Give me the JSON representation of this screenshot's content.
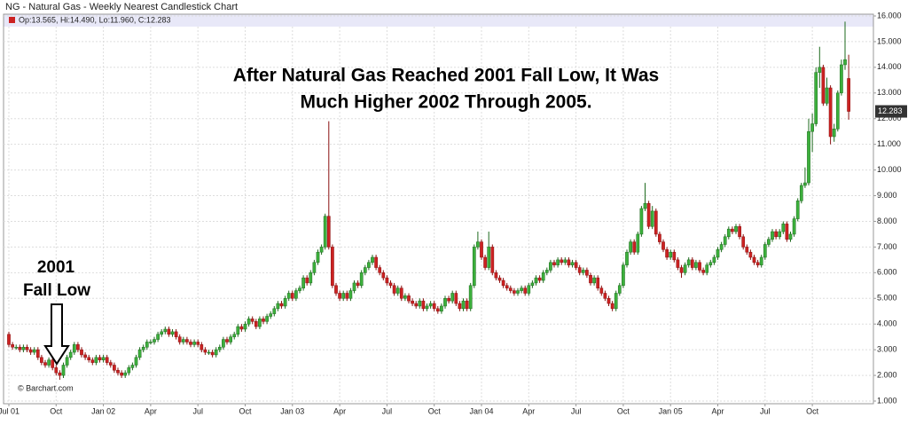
{
  "chart_data": {
    "type": "candlestick",
    "title": "NG - Natural Gas - Weekly Nearest Candlestick Chart",
    "legend_label": "Op:13.565, Hi:14.490, Lo:11.960, C:12.283",
    "annotation_lines": [
      "After Natural Gas Reached 2001 Fall Low, It Was",
      "Much Higher 2002 Through 2005."
    ],
    "callout_lines": [
      "2001",
      "Fall Low"
    ],
    "credit": "© Barchart.com",
    "up_color": "#3cb03c",
    "down_color": "#cc2222",
    "grid": true,
    "ylim": [
      1,
      16
    ],
    "yticks": [
      {
        "value": 1,
        "label": "1.000"
      },
      {
        "value": 2,
        "label": "2.000"
      },
      {
        "value": 3,
        "label": "3.000"
      },
      {
        "value": 4,
        "label": "4.000"
      },
      {
        "value": 5,
        "label": "5.000"
      },
      {
        "value": 6,
        "label": "6.000"
      },
      {
        "value": 7,
        "label": "7.000"
      },
      {
        "value": 8,
        "label": "8.000"
      },
      {
        "value": 9,
        "label": "9.000"
      },
      {
        "value": 10,
        "label": "10.000"
      },
      {
        "value": 11,
        "label": "11.000"
      },
      {
        "value": 12,
        "label": "12.000"
      },
      {
        "value": 13,
        "label": "13.000"
      },
      {
        "value": 14,
        "label": "14.000"
      },
      {
        "value": 15,
        "label": "15.000"
      },
      {
        "value": 16,
        "label": "16.000"
      }
    ],
    "categories": [
      "Jul 01",
      null,
      null,
      null,
      null,
      null,
      null,
      null,
      null,
      null,
      null,
      null,
      null,
      "Oct",
      null,
      null,
      null,
      null,
      null,
      null,
      null,
      null,
      null,
      null,
      null,
      null,
      "Jan 02",
      null,
      null,
      null,
      null,
      null,
      null,
      null,
      null,
      null,
      null,
      null,
      null,
      "Apr",
      null,
      null,
      null,
      null,
      null,
      null,
      null,
      null,
      null,
      null,
      null,
      null,
      "Jul",
      null,
      null,
      null,
      null,
      null,
      null,
      null,
      null,
      null,
      null,
      null,
      null,
      "Oct",
      null,
      null,
      null,
      null,
      null,
      null,
      null,
      null,
      null,
      null,
      null,
      null,
      "Jan 03",
      null,
      null,
      null,
      null,
      null,
      null,
      null,
      null,
      null,
      null,
      null,
      null,
      "Apr",
      null,
      null,
      null,
      null,
      null,
      null,
      null,
      null,
      null,
      null,
      null,
      null,
      "Jul",
      null,
      null,
      null,
      null,
      null,
      null,
      null,
      null,
      null,
      null,
      null,
      null,
      "Oct",
      null,
      null,
      null,
      null,
      null,
      null,
      null,
      null,
      null,
      null,
      null,
      null,
      "Jan 04",
      null,
      null,
      null,
      null,
      null,
      null,
      null,
      null,
      null,
      null,
      null,
      null,
      "Apr",
      null,
      null,
      null,
      null,
      null,
      null,
      null,
      null,
      null,
      null,
      null,
      null,
      "Jul",
      null,
      null,
      null,
      null,
      null,
      null,
      null,
      null,
      null,
      null,
      null,
      null,
      "Oct",
      null,
      null,
      null,
      null,
      null,
      null,
      null,
      null,
      null,
      null,
      null,
      null,
      "Jan 05",
      null,
      null,
      null,
      null,
      null,
      null,
      null,
      null,
      null,
      null,
      null,
      null,
      "Apr",
      null,
      null,
      null,
      null,
      null,
      null,
      null,
      null,
      null,
      null,
      null,
      null,
      "Jul",
      null,
      null,
      null,
      null,
      null,
      null,
      null,
      null,
      null,
      null,
      null,
      null,
      "Oct",
      null,
      null,
      null,
      null,
      null,
      null,
      null,
      null,
      null,
      null
    ],
    "open": [
      3.6,
      3.2,
      3.1,
      3.1,
      3.0,
      3.1,
      3.0,
      2.9,
      3.0,
      2.7,
      2.5,
      2.4,
      2.6,
      2.3,
      2.1,
      2.0,
      2.4,
      2.7,
      2.9,
      3.2,
      3.0,
      2.8,
      2.7,
      2.6,
      2.5,
      2.7,
      2.6,
      2.7,
      2.5,
      2.4,
      2.2,
      2.1,
      2.0,
      2.1,
      2.3,
      2.4,
      2.7,
      3.0,
      3.1,
      3.3,
      3.3,
      3.4,
      3.6,
      3.7,
      3.8,
      3.6,
      3.7,
      3.5,
      3.3,
      3.4,
      3.3,
      3.2,
      3.3,
      3.2,
      3.0,
      2.9,
      2.9,
      2.8,
      3.0,
      3.1,
      3.4,
      3.3,
      3.5,
      3.6,
      3.9,
      3.8,
      4.0,
      4.2,
      4.1,
      3.9,
      4.2,
      4.1,
      4.3,
      4.4,
      4.6,
      4.8,
      4.7,
      5.0,
      5.2,
      5.0,
      5.3,
      5.4,
      5.8,
      5.6,
      6.0,
      6.4,
      6.8,
      7.0,
      8.2,
      7.0,
      5.5,
      5.2,
      5.0,
      5.2,
      5.0,
      5.3,
      5.6,
      5.5,
      6.0,
      6.2,
      6.4,
      6.6,
      6.2,
      6.0,
      5.8,
      5.6,
      5.5,
      5.2,
      5.4,
      5.0,
      5.1,
      4.9,
      4.8,
      4.7,
      4.9,
      4.6,
      4.7,
      4.8,
      4.6,
      4.5,
      4.7,
      5.0,
      4.9,
      5.2,
      4.8,
      4.6,
      4.9,
      4.6,
      5.5,
      7.0,
      7.2,
      6.6,
      6.2,
      7.0,
      6.0,
      5.8,
      5.7,
      5.5,
      5.4,
      5.3,
      5.2,
      5.3,
      5.4,
      5.2,
      5.5,
      5.6,
      5.8,
      5.7,
      6.0,
      6.1,
      6.4,
      6.3,
      6.5,
      6.4,
      6.5,
      6.3,
      6.4,
      6.2,
      6.0,
      6.1,
      5.9,
      5.6,
      5.8,
      5.4,
      5.2,
      5.0,
      4.8,
      4.6,
      5.2,
      5.5,
      6.3,
      6.8,
      7.2,
      6.8,
      7.5,
      8.5,
      8.7,
      7.8,
      8.4,
      7.5,
      7.2,
      6.9,
      6.6,
      6.8,
      6.5,
      6.2,
      6.0,
      6.3,
      6.5,
      6.2,
      6.4,
      6.1,
      6.0,
      6.3,
      6.4,
      6.6,
      6.9,
      7.1,
      7.4,
      7.7,
      7.6,
      7.8,
      7.4,
      7.0,
      6.8,
      6.6,
      6.4,
      6.3,
      6.6,
      7.1,
      7.3,
      7.6,
      7.4,
      7.6,
      7.9,
      7.3,
      7.5,
      8.1,
      8.8,
      9.4,
      9.5,
      11.5,
      11.8,
      13.8,
      14.0,
      12.6,
      13.2,
      11.3,
      11.6,
      13.0,
      14.1,
      13.565
    ],
    "high": [
      3.7,
      3.3,
      3.2,
      3.2,
      3.2,
      3.2,
      3.1,
      3.1,
      3.1,
      2.8,
      2.6,
      2.7,
      2.7,
      2.4,
      2.2,
      2.5,
      2.8,
      3.0,
      3.3,
      3.3,
      3.1,
      2.9,
      2.8,
      2.7,
      2.8,
      2.8,
      2.8,
      2.8,
      2.6,
      2.5,
      2.3,
      2.2,
      2.2,
      2.4,
      2.5,
      2.8,
      3.1,
      3.2,
      3.4,
      3.4,
      3.5,
      3.7,
      3.8,
      3.9,
      3.9,
      3.8,
      3.8,
      3.6,
      3.5,
      3.5,
      3.4,
      3.4,
      3.4,
      3.3,
      3.1,
      3.0,
      3.0,
      3.1,
      3.2,
      3.5,
      3.5,
      3.6,
      3.7,
      4.0,
      4.0,
      4.1,
      4.3,
      4.3,
      4.2,
      4.3,
      4.3,
      4.4,
      4.5,
      4.7,
      4.9,
      4.9,
      5.1,
      5.3,
      5.3,
      5.4,
      5.5,
      5.9,
      5.9,
      6.1,
      6.5,
      6.9,
      7.1,
      8.3,
      11.9,
      7.1,
      5.6,
      5.3,
      5.3,
      5.3,
      5.4,
      5.7,
      5.7,
      6.1,
      6.3,
      6.5,
      6.7,
      6.7,
      6.3,
      6.1,
      5.9,
      5.7,
      5.6,
      5.5,
      5.5,
      5.2,
      5.2,
      5.0,
      4.9,
      5.0,
      5.0,
      4.8,
      4.9,
      4.9,
      4.7,
      4.8,
      5.1,
      5.1,
      5.3,
      5.3,
      4.9,
      5.0,
      5.0,
      5.6,
      7.1,
      7.6,
      7.3,
      6.7,
      7.6,
      7.1,
      6.1,
      5.9,
      5.8,
      5.6,
      5.5,
      5.4,
      5.4,
      5.5,
      5.5,
      5.6,
      5.7,
      5.9,
      5.9,
      6.1,
      6.2,
      6.5,
      6.5,
      6.6,
      6.6,
      6.6,
      6.6,
      6.5,
      6.5,
      6.3,
      6.2,
      6.2,
      6.0,
      5.9,
      5.9,
      5.5,
      5.3,
      5.1,
      4.9,
      5.3,
      5.6,
      6.4,
      6.9,
      7.3,
      7.3,
      7.6,
      8.6,
      9.5,
      8.8,
      8.6,
      8.5,
      7.6,
      7.3,
      7.0,
      6.9,
      6.9,
      6.6,
      6.3,
      6.4,
      6.6,
      6.6,
      6.5,
      6.5,
      6.2,
      6.4,
      6.5,
      6.7,
      7.0,
      7.2,
      7.5,
      7.8,
      7.8,
      7.9,
      7.9,
      7.5,
      7.1,
      6.9,
      6.7,
      6.5,
      6.7,
      7.2,
      7.4,
      7.7,
      7.7,
      7.7,
      8.0,
      8.0,
      7.6,
      8.2,
      8.9,
      9.5,
      10.1,
      12.0,
      12.2,
      14.0,
      14.8,
      14.1,
      13.6,
      13.3,
      11.8,
      13.1,
      14.3,
      15.78,
      14.49
    ],
    "low": [
      3.1,
      3.0,
      3.0,
      2.9,
      2.9,
      2.9,
      2.8,
      2.8,
      2.6,
      2.4,
      2.3,
      2.3,
      2.2,
      2.0,
      1.83,
      1.9,
      2.3,
      2.6,
      2.8,
      2.9,
      2.7,
      2.6,
      2.5,
      2.4,
      2.4,
      2.5,
      2.5,
      2.4,
      2.3,
      2.1,
      2.0,
      1.9,
      1.9,
      2.0,
      2.2,
      2.3,
      2.6,
      2.9,
      3.0,
      3.2,
      3.2,
      3.3,
      3.5,
      3.6,
      3.5,
      3.5,
      3.4,
      3.2,
      3.2,
      3.2,
      3.1,
      3.1,
      3.1,
      2.9,
      2.8,
      2.8,
      2.7,
      2.7,
      2.9,
      3.0,
      3.2,
      3.2,
      3.4,
      3.5,
      3.7,
      3.7,
      3.9,
      4.0,
      3.8,
      3.8,
      4.0,
      4.0,
      4.2,
      4.3,
      4.5,
      4.6,
      4.6,
      4.9,
      4.9,
      4.9,
      5.2,
      5.3,
      5.5,
      5.5,
      5.9,
      6.3,
      6.7,
      6.9,
      6.9,
      5.4,
      5.1,
      4.9,
      4.9,
      4.9,
      4.9,
      5.2,
      5.4,
      5.4,
      5.9,
      6.1,
      6.3,
      6.1,
      5.9,
      5.7,
      5.5,
      5.4,
      5.1,
      5.1,
      4.9,
      4.9,
      4.8,
      4.7,
      4.6,
      4.6,
      4.5,
      4.5,
      4.6,
      4.5,
      4.4,
      4.4,
      4.6,
      4.8,
      4.8,
      4.7,
      4.5,
      4.5,
      4.5,
      4.5,
      5.4,
      6.9,
      6.5,
      6.1,
      6.1,
      5.9,
      5.7,
      5.6,
      5.4,
      5.3,
      5.2,
      5.1,
      5.1,
      5.2,
      5.1,
      5.1,
      5.4,
      5.5,
      5.6,
      5.6,
      5.9,
      6.0,
      6.2,
      6.2,
      6.3,
      6.3,
      6.2,
      6.2,
      6.1,
      5.9,
      5.9,
      5.8,
      5.5,
      5.5,
      5.3,
      5.1,
      4.9,
      4.7,
      4.5,
      4.5,
      5.1,
      5.4,
      6.2,
      6.7,
      6.7,
      6.7,
      7.4,
      8.4,
      7.7,
      7.7,
      7.4,
      7.1,
      6.8,
      6.5,
      6.5,
      6.4,
      6.1,
      5.8,
      5.9,
      6.2,
      6.1,
      6.1,
      6.0,
      5.9,
      5.9,
      6.2,
      6.3,
      6.5,
      6.8,
      7.0,
      7.3,
      7.5,
      7.5,
      7.3,
      6.9,
      6.7,
      6.5,
      6.3,
      6.2,
      6.2,
      6.5,
      7.0,
      7.2,
      7.3,
      7.3,
      7.5,
      7.2,
      7.2,
      7.4,
      8.0,
      8.7,
      9.3,
      9.4,
      10.7,
      11.7,
      13.2,
      12.5,
      12.5,
      11.0,
      11.1,
      11.5,
      12.9,
      13.9,
      11.96
    ],
    "close": [
      3.2,
      3.1,
      3.1,
      3.0,
      3.1,
      3.0,
      2.9,
      3.0,
      2.7,
      2.5,
      2.4,
      2.6,
      2.3,
      2.1,
      2.0,
      2.4,
      2.7,
      2.9,
      3.2,
      3.0,
      2.8,
      2.7,
      2.6,
      2.5,
      2.7,
      2.6,
      2.7,
      2.5,
      2.4,
      2.2,
      2.1,
      2.0,
      2.1,
      2.3,
      2.4,
      2.7,
      3.0,
      3.1,
      3.3,
      3.3,
      3.4,
      3.6,
      3.7,
      3.8,
      3.6,
      3.7,
      3.5,
      3.3,
      3.4,
      3.3,
      3.2,
      3.3,
      3.2,
      3.0,
      2.9,
      2.9,
      2.8,
      3.0,
      3.1,
      3.4,
      3.3,
      3.5,
      3.6,
      3.9,
      3.8,
      4.0,
      4.2,
      4.1,
      3.9,
      4.2,
      4.1,
      4.3,
      4.4,
      4.6,
      4.8,
      4.7,
      5.0,
      5.2,
      5.0,
      5.3,
      5.4,
      5.8,
      5.6,
      6.0,
      6.4,
      6.8,
      7.0,
      8.2,
      7.0,
      5.5,
      5.2,
      5.0,
      5.2,
      5.0,
      5.3,
      5.6,
      5.5,
      6.0,
      6.2,
      6.4,
      6.6,
      6.2,
      6.0,
      5.8,
      5.6,
      5.5,
      5.2,
      5.4,
      5.0,
      5.1,
      4.9,
      4.8,
      4.7,
      4.9,
      4.6,
      4.7,
      4.8,
      4.6,
      4.5,
      4.7,
      5.0,
      4.9,
      5.2,
      4.8,
      4.6,
      4.9,
      4.6,
      5.5,
      7.0,
      7.2,
      6.6,
      6.2,
      7.0,
      6.0,
      5.8,
      5.7,
      5.5,
      5.4,
      5.3,
      5.2,
      5.3,
      5.4,
      5.2,
      5.5,
      5.6,
      5.8,
      5.7,
      6.0,
      6.1,
      6.4,
      6.3,
      6.5,
      6.4,
      6.5,
      6.3,
      6.4,
      6.2,
      6.0,
      6.1,
      5.9,
      5.6,
      5.8,
      5.4,
      5.2,
      5.0,
      4.8,
      4.6,
      5.2,
      5.5,
      6.3,
      6.8,
      7.2,
      6.8,
      7.5,
      8.5,
      8.7,
      7.8,
      8.4,
      7.5,
      7.2,
      6.9,
      6.6,
      6.8,
      6.5,
      6.2,
      6.0,
      6.3,
      6.5,
      6.2,
      6.4,
      6.1,
      6.0,
      6.3,
      6.4,
      6.6,
      6.9,
      7.1,
      7.4,
      7.7,
      7.6,
      7.8,
      7.4,
      7.0,
      6.8,
      6.6,
      6.4,
      6.3,
      6.6,
      7.1,
      7.3,
      7.6,
      7.4,
      7.6,
      7.9,
      7.3,
      7.5,
      8.1,
      8.8,
      9.4,
      9.5,
      11.5,
      11.8,
      13.8,
      14.0,
      12.6,
      13.2,
      11.3,
      11.6,
      13.0,
      14.1,
      14.3,
      12.283
    ]
  }
}
